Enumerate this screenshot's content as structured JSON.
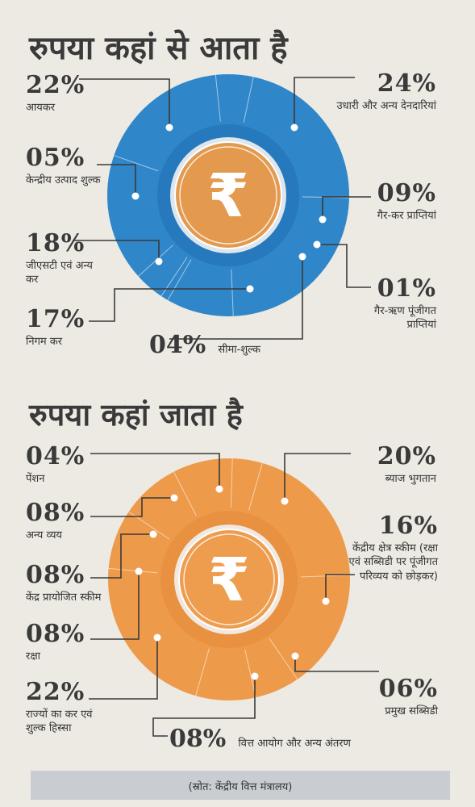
{
  "source": "(स्रोत: केंद्रीय वित्त मंत्रालय)",
  "chart_data": [
    {
      "type": "pie",
      "title": "रुपया कहां से आता है",
      "center_symbol": "₹",
      "colors": {
        "outer": "#2f86c9",
        "inner": "#1e6fb1",
        "coin": "#e39a4e"
      },
      "slices": [
        {
          "label": "आयकर",
          "value": "22%",
          "v": 22
        },
        {
          "label": "उधारी और अन्य देनदारियां",
          "value": "24%",
          "v": 24
        },
        {
          "label": "गैर-कर प्राप्तियां",
          "value": "09%",
          "v": 9
        },
        {
          "label": "गैर-ऋण पूंजीगत प्राप्तियां",
          "value": "01%",
          "v": 1
        },
        {
          "label": "सीमा-शुल्क",
          "value": "04%",
          "v": 4
        },
        {
          "label": "निगम कर",
          "value": "17%",
          "v": 17
        },
        {
          "label": "जीएसटी एवं अन्य कर",
          "value": "18%",
          "v": 18
        },
        {
          "label": "केन्द्रीय उत्पाद शुल्क",
          "value": "05%",
          "v": 5
        }
      ]
    },
    {
      "type": "pie",
      "title": "रुपया कहां जाता है",
      "center_symbol": "₹",
      "colors": {
        "outer": "#ed9a4a",
        "inner": "#e48a38",
        "coin": "#ee9d4e"
      },
      "slices": [
        {
          "label": "ब्याज भुगतान",
          "value": "20%",
          "v": 20
        },
        {
          "label": "केंद्रीय क्षेत्र स्कीम (रक्षा एवं सब्सिडी पर पूंजीगत परिव्यय को छोड़कर)",
          "value": "16%",
          "v": 16
        },
        {
          "label": "प्रमुख सब्सिडी",
          "value": "06%",
          "v": 6
        },
        {
          "label": "वित्त आयोग और अन्य अंतरण",
          "value": "08%",
          "v": 8
        },
        {
          "label": "राज्यों का कर एवं शुल्क हिस्सा",
          "value": "22%",
          "v": 22
        },
        {
          "label": "रक्षा",
          "value": "08%",
          "v": 8
        },
        {
          "label": "केंद्र प्रायोजित स्कीम",
          "value": "08%",
          "v": 8
        },
        {
          "label": "अन्य व्यय",
          "value": "08%",
          "v": 8
        },
        {
          "label": "पेंशन",
          "value": "04%",
          "v": 4
        }
      ]
    }
  ]
}
